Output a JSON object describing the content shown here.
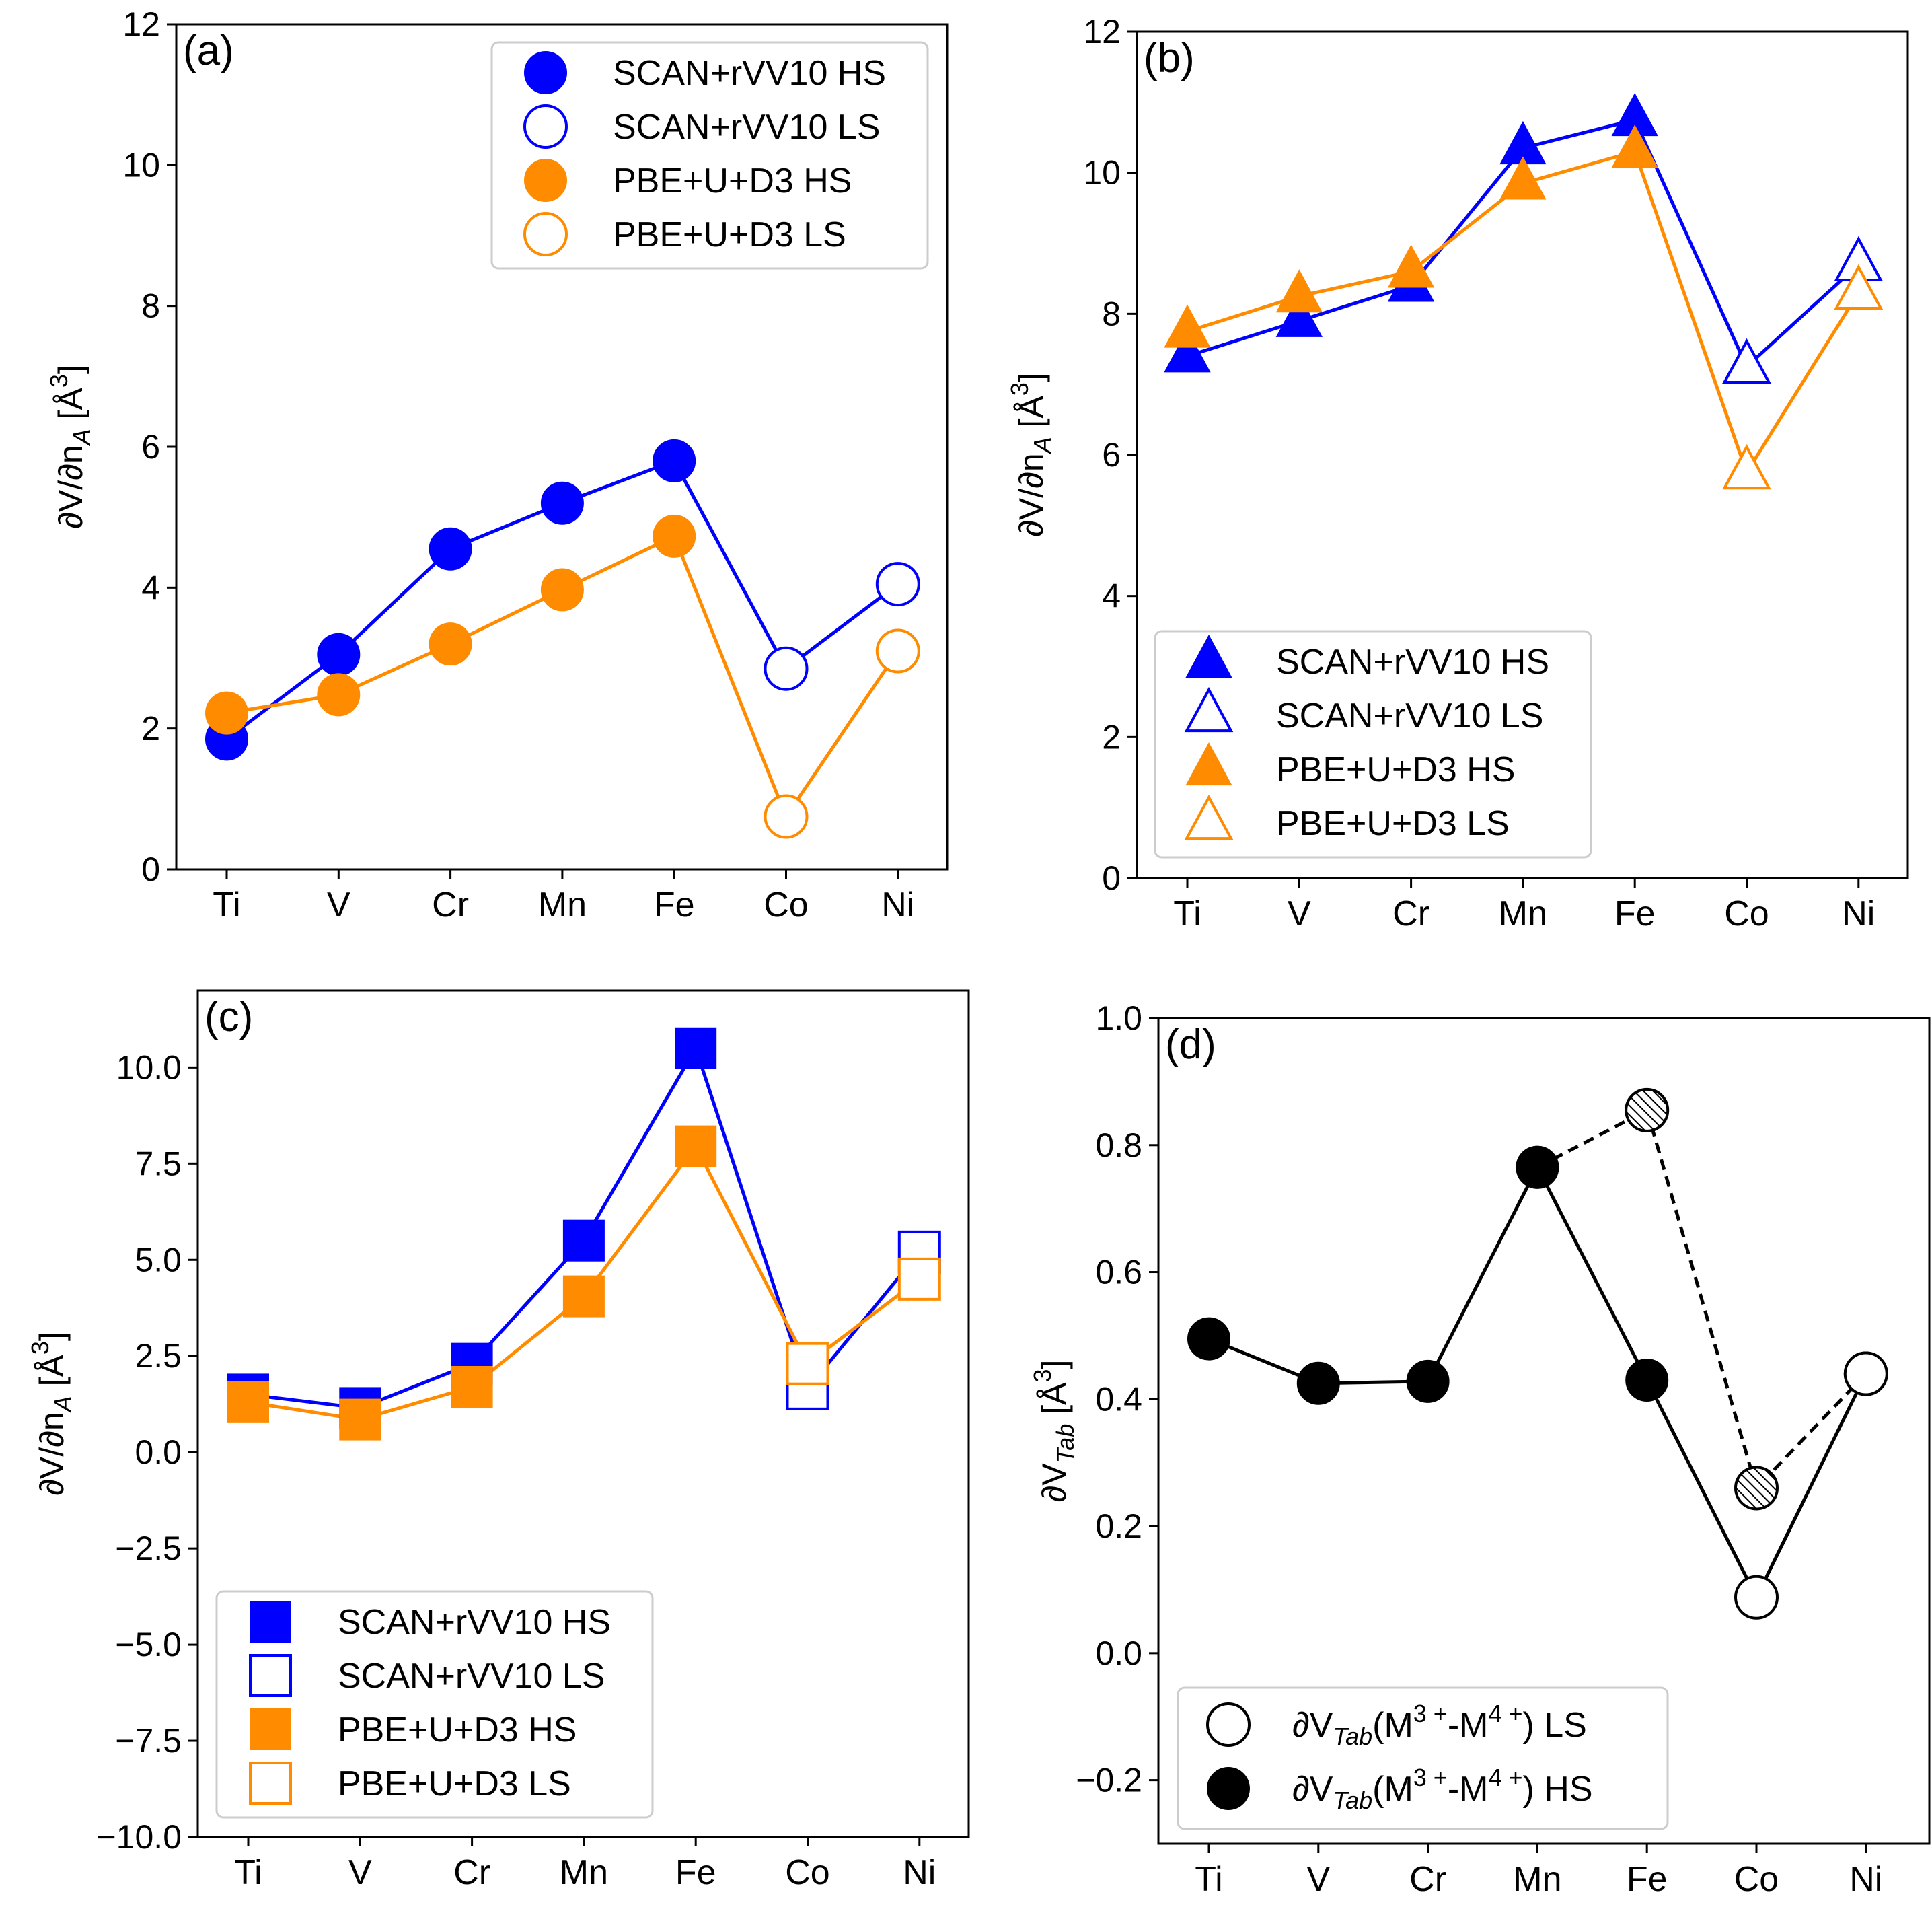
{
  "chart_data": [
    {
      "type": "line",
      "panel_label": "(a)",
      "marker": "circle",
      "categories": [
        "Ti",
        "V",
        "Cr",
        "Mn",
        "Fe",
        "Co",
        "Ni"
      ],
      "ylabel": "∂V/∂n",
      "ylabel_sub": "A",
      "ylabel_unit": "[Å",
      "ylabel_sup": "3",
      "ylabel_close": "]",
      "ylim": [
        0,
        12
      ],
      "yticks": [
        0,
        2,
        4,
        6,
        8,
        10,
        12
      ],
      "ytick_labels": [
        "0",
        "2",
        "4",
        "6",
        "8",
        "10",
        "12"
      ],
      "legend_position": "upper right",
      "series": [
        {
          "name": "SCAN+rVV10",
          "color": "#0000ff",
          "values": [
            1.85,
            3.05,
            4.55,
            5.2,
            5.8,
            2.85,
            4.05
          ],
          "fill": [
            "HS",
            "HS",
            "HS",
            "HS",
            "HS",
            "LS",
            "LS"
          ]
        },
        {
          "name": "PBE+U+D3",
          "color": "#ff8c00",
          "values": [
            2.22,
            2.48,
            3.2,
            3.97,
            4.73,
            0.75,
            3.1
          ],
          "fill": [
            "HS",
            "HS",
            "HS",
            "HS",
            "HS",
            "LS",
            "LS"
          ]
        }
      ],
      "legend": [
        {
          "label": "SCAN+rVV10 HS",
          "color": "#0000ff",
          "filled": true
        },
        {
          "label": "SCAN+rVV10 LS",
          "color": "#0000ff",
          "filled": false
        },
        {
          "label": "PBE+U+D3 HS",
          "color": "#ff8c00",
          "filled": true
        },
        {
          "label": "PBE+U+D3 LS",
          "color": "#ff8c00",
          "filled": false
        }
      ]
    },
    {
      "type": "line",
      "panel_label": "(b)",
      "marker": "triangle",
      "categories": [
        "Ti",
        "V",
        "Cr",
        "Mn",
        "Fe",
        "Co",
        "Ni"
      ],
      "ylabel": "∂V/∂n",
      "ylabel_sub": "A",
      "ylabel_unit": "[Å",
      "ylabel_sup": "3",
      "ylabel_close": "]",
      "ylim": [
        0,
        12
      ],
      "yticks": [
        0,
        2,
        4,
        6,
        8,
        10,
        12
      ],
      "ytick_labels": [
        "0",
        "2",
        "4",
        "6",
        "8",
        "10",
        "12"
      ],
      "legend_position": "lower left",
      "series": [
        {
          "name": "SCAN+rVV10",
          "color": "#0000ff",
          "values": [
            7.4,
            7.9,
            8.4,
            10.35,
            10.75,
            7.25,
            8.7
          ],
          "fill": [
            "HS",
            "HS",
            "HS",
            "HS",
            "HS",
            "LS",
            "LS"
          ]
        },
        {
          "name": "PBE+U+D3",
          "color": "#ff8c00",
          "values": [
            7.75,
            8.25,
            8.6,
            9.85,
            10.3,
            5.75,
            8.3
          ],
          "fill": [
            "HS",
            "HS",
            "HS",
            "HS",
            "HS",
            "LS",
            "LS"
          ]
        }
      ],
      "legend": [
        {
          "label": "SCAN+rVV10 HS",
          "color": "#0000ff",
          "filled": true
        },
        {
          "label": "SCAN+rVV10 LS",
          "color": "#0000ff",
          "filled": false
        },
        {
          "label": "PBE+U+D3 HS",
          "color": "#ff8c00",
          "filled": true
        },
        {
          "label": "PBE+U+D3 LS",
          "color": "#ff8c00",
          "filled": false
        }
      ]
    },
    {
      "type": "line",
      "panel_label": "(c)",
      "marker": "square",
      "categories": [
        "Ti",
        "V",
        "Cr",
        "Mn",
        "Fe",
        "Co",
        "Ni"
      ],
      "ylabel": "∂V/∂n",
      "ylabel_sub": "A",
      "ylabel_unit": "[Å",
      "ylabel_sup": "3",
      "ylabel_close": "]",
      "ylim": [
        -10,
        12
      ],
      "yticks": [
        -10,
        -7.5,
        -5,
        -2.5,
        0,
        2.5,
        5,
        7.5,
        10
      ],
      "ytick_labels": [
        "−10.0",
        "−7.5",
        "−5.0",
        "−2.5",
        "0.0",
        "2.5",
        "5.0",
        "7.5",
        "10.0"
      ],
      "legend_position": "lower left",
      "series": [
        {
          "name": "SCAN+rVV10",
          "color": "#0000ff",
          "values": [
            1.5,
            1.15,
            2.3,
            5.5,
            10.5,
            1.65,
            5.2
          ],
          "fill": [
            "HS",
            "HS",
            "HS",
            "HS",
            "HS",
            "LS",
            "LS"
          ]
        },
        {
          "name": "PBE+U+D3",
          "color": "#ff8c00",
          "values": [
            1.3,
            0.85,
            1.7,
            4.05,
            7.95,
            2.3,
            4.5
          ],
          "fill": [
            "HS",
            "HS",
            "HS",
            "HS",
            "HS",
            "LS",
            "LS"
          ]
        }
      ],
      "legend": [
        {
          "label": "SCAN+rVV10 HS",
          "color": "#0000ff",
          "filled": true
        },
        {
          "label": "SCAN+rVV10 LS",
          "color": "#0000ff",
          "filled": false
        },
        {
          "label": "PBE+U+D3 HS",
          "color": "#ff8c00",
          "filled": true
        },
        {
          "label": "PBE+U+D3 LS",
          "color": "#ff8c00",
          "filled": false
        }
      ]
    },
    {
      "type": "line",
      "panel_label": "(d)",
      "marker": "circle",
      "categories": [
        "Ti",
        "V",
        "Cr",
        "Mn",
        "Fe",
        "Co",
        "Ni"
      ],
      "ylabel": "∂V",
      "ylabel_sub": "Tab",
      "ylabel_unit": "[Å",
      "ylabel_sup": "3",
      "ylabel_close": "]",
      "ylim": [
        -0.3,
        1.0
      ],
      "yticks": [
        -0.2,
        0.0,
        0.2,
        0.4,
        0.6,
        0.8,
        1.0
      ],
      "ytick_labels": [
        "−0.2",
        "0.0",
        "0.2",
        "0.4",
        "0.6",
        "0.8",
        "1.0"
      ],
      "legend_position": "lower left",
      "series": [
        {
          "name": "HS path",
          "color": "#000000",
          "dashed": false,
          "points": [
            [
              0,
              0.495,
              "filled"
            ],
            [
              1,
              0.425,
              "filled"
            ],
            [
              2,
              0.428,
              "filled"
            ],
            [
              3,
              0.765,
              "filled"
            ],
            [
              4,
              0.43,
              "filled"
            ],
            [
              5,
              0.088,
              "open"
            ],
            [
              6,
              0.44,
              "open"
            ]
          ]
        },
        {
          "name": "LS path",
          "color": "#000000",
          "dashed": true,
          "points": [
            [
              3,
              0.765,
              "filled"
            ],
            [
              4,
              0.855,
              "hatched"
            ],
            [
              5,
              0.26,
              "hatched"
            ],
            [
              6,
              0.44,
              "open"
            ]
          ]
        }
      ],
      "legend": [
        {
          "prefix": "∂V",
          "sub": "Tab",
          "mid": "(M",
          "sup1": "3 +",
          "dash": "-M",
          "sup2": "4 +",
          "suffix": ") LS",
          "filled": false
        },
        {
          "prefix": "∂V",
          "sub": "Tab",
          "mid": "(M",
          "sup1": "3 +",
          "dash": "-M",
          "sup2": "4 +",
          "suffix": ") HS",
          "filled": true
        }
      ]
    }
  ]
}
